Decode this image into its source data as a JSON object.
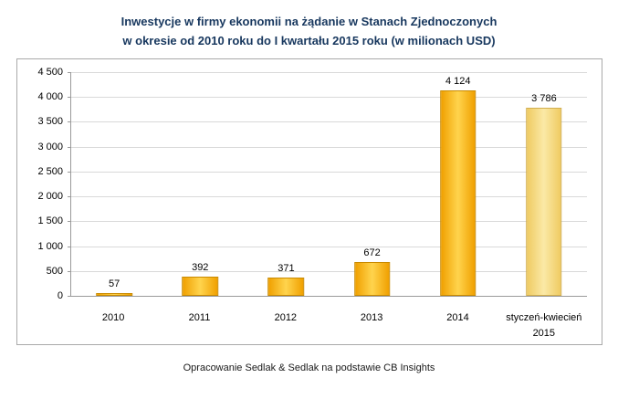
{
  "title": {
    "line1": "Inwestycje w firmy ekonomii na żądanie w Stanach Zjednoczonych",
    "line2": "w okresie od 2010 roku do I kwartału 2015 roku (w milionach USD)"
  },
  "footer": {
    "text": "Opracowanie Sedlak & Sedlak na podstawie CB Insights"
  },
  "colors": {
    "title": "#17375E",
    "bar_main": "#F0A000",
    "bar_main_light": "#FFD44D",
    "bar_last": "#EFCB62",
    "bar_last_light": "#FBE9A6",
    "gridline": "#D9D9D9",
    "axis": "#9A9A9A"
  },
  "chart_data": {
    "type": "bar",
    "title": "Inwestycje w firmy ekonomii na żądanie w Stanach Zjednoczonych w okresie od 2010 roku do I kwartału 2015 roku (w milionach USD)",
    "categories": [
      "2010",
      "2011",
      "2012",
      "2013",
      "2014",
      "styczeń-kwiecień\n2015"
    ],
    "values": [
      57,
      392,
      371,
      672,
      4124,
      3786
    ],
    "value_labels": [
      "57",
      "392",
      "371",
      "672",
      "4 124",
      "3 786"
    ],
    "xlabel": "",
    "ylabel": "",
    "ylim": [
      0,
      4500
    ],
    "ytick_step": 500,
    "ytick_labels": [
      "0",
      "500",
      "1 000",
      "1 500",
      "2 000",
      "2 500",
      "3 000",
      "3 500",
      "4 000",
      "4 500"
    ],
    "grid": true,
    "legend": "none",
    "highlight_last_bar_lighter": true
  }
}
